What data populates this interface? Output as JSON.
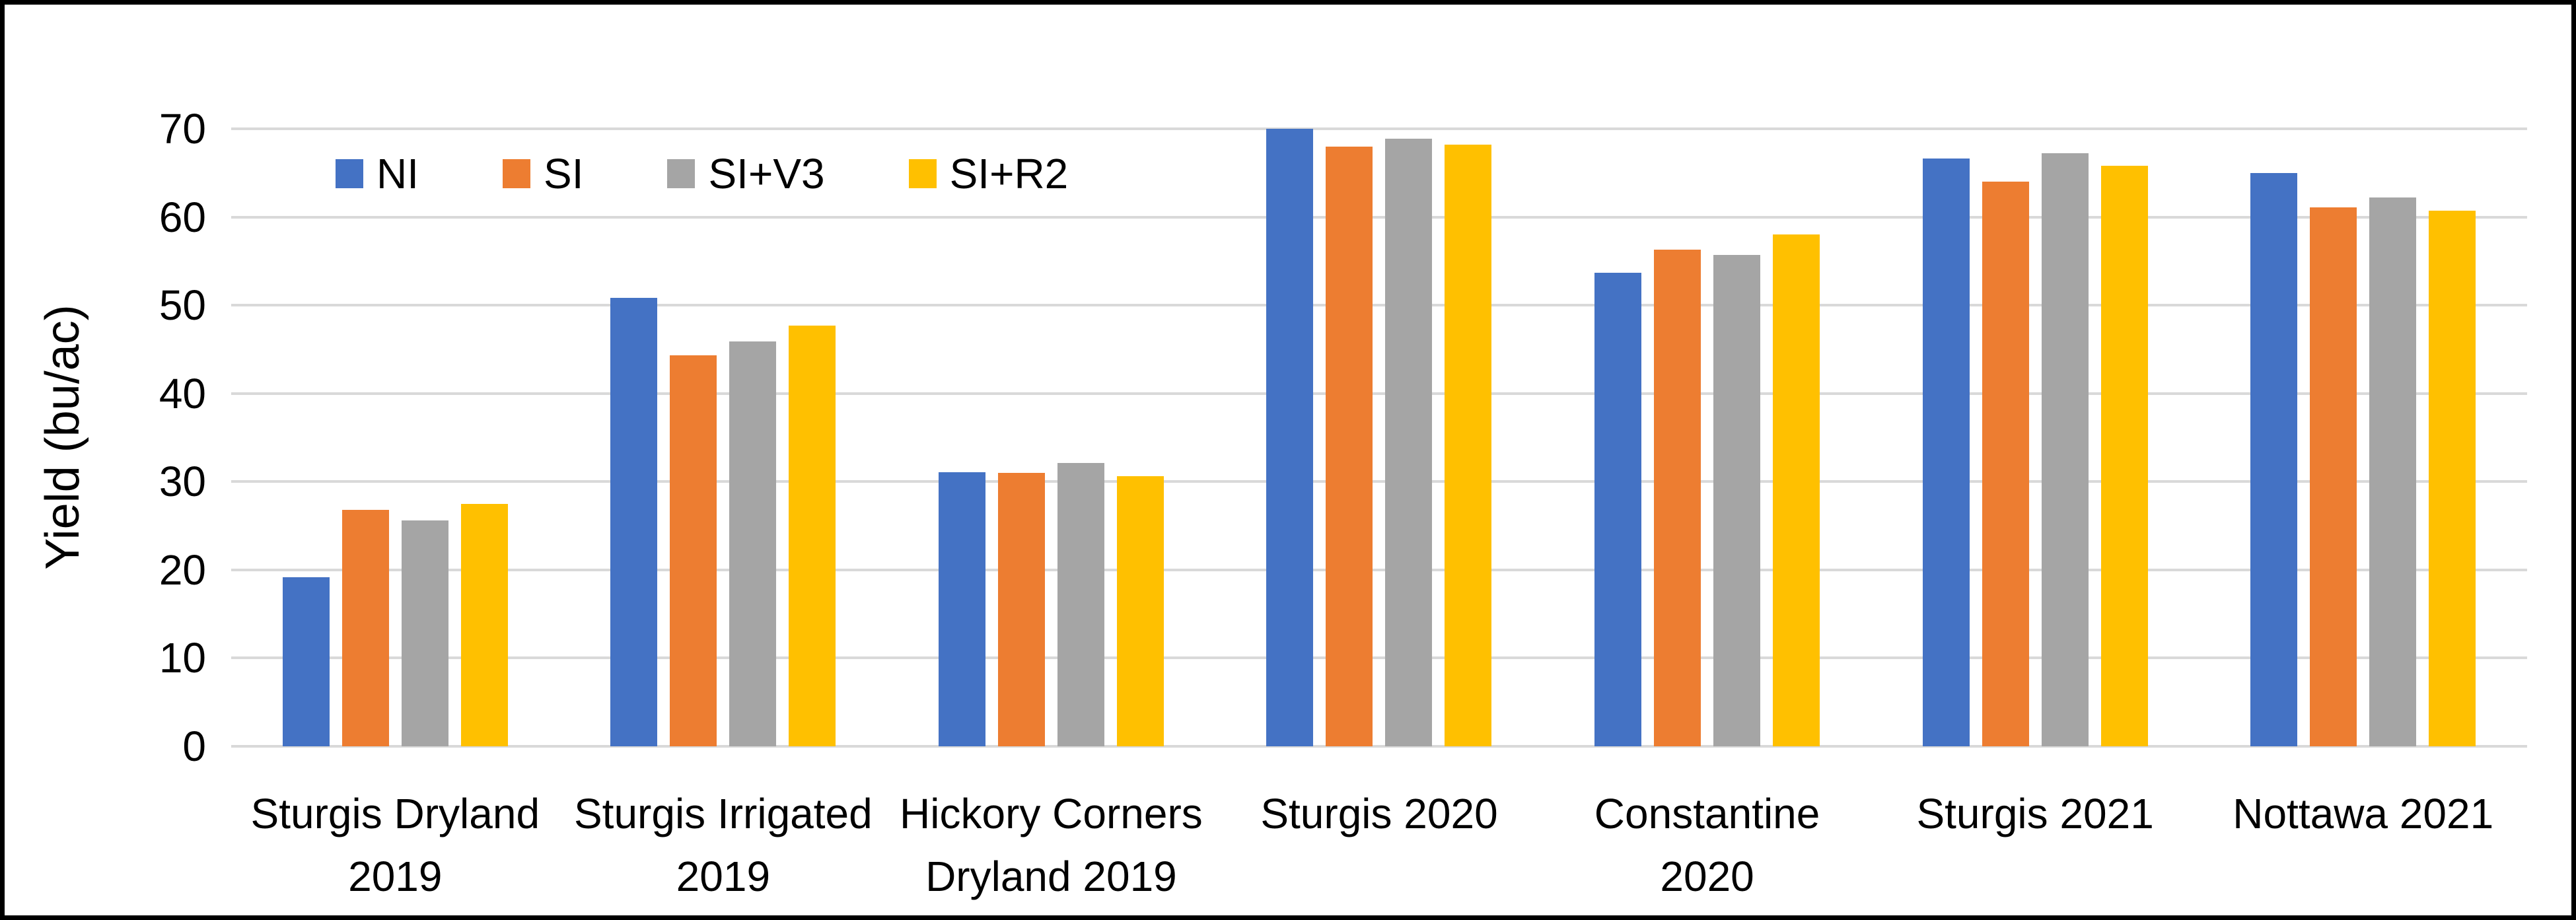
{
  "chart_data": {
    "type": "bar",
    "title": "",
    "xlabel": "",
    "ylabel": "Yield (bu/ac)",
    "ylim": [
      0,
      70
    ],
    "yticks": [
      0,
      10,
      20,
      30,
      40,
      50,
      60,
      70
    ],
    "grid": true,
    "legend_position": "top-left",
    "categories": [
      "Sturgis Dryland 2019",
      "Sturgis Irrigated 2019",
      "Hickory Corners Dryland 2019",
      "Sturgis 2020",
      "Constantine 2020",
      "Sturgis 2021",
      "Nottawa 2021"
    ],
    "category_lines": [
      [
        "Sturgis Dryland",
        "2019"
      ],
      [
        "Sturgis Irrigated",
        "2019"
      ],
      [
        "Hickory Corners",
        "Dryland 2019"
      ],
      [
        "Sturgis 2020"
      ],
      [
        "Constantine",
        "2020"
      ],
      [
        "Sturgis 2021"
      ],
      [
        "Nottawa 2021"
      ]
    ],
    "series": [
      {
        "name": "NI",
        "color": "#4472C4",
        "values": [
          19.2,
          50.8,
          31.1,
          70.0,
          53.7,
          66.6,
          65.0
        ]
      },
      {
        "name": "SI",
        "color": "#ED7D31",
        "values": [
          26.8,
          44.3,
          31.0,
          68.0,
          56.3,
          64.0,
          61.1
        ]
      },
      {
        "name": "SI+V3",
        "color": "#A5A5A5",
        "values": [
          25.6,
          45.9,
          32.1,
          68.9,
          55.7,
          67.2,
          62.2
        ]
      },
      {
        "name": "SI+R2",
        "color": "#FFC000",
        "values": [
          27.5,
          47.7,
          30.6,
          68.2,
          58.0,
          65.8,
          60.7
        ]
      }
    ]
  },
  "colors": {
    "gridline": "#D9D9D9",
    "text": "#000000",
    "frame_border": "#000000",
    "background": "#FFFFFF"
  }
}
